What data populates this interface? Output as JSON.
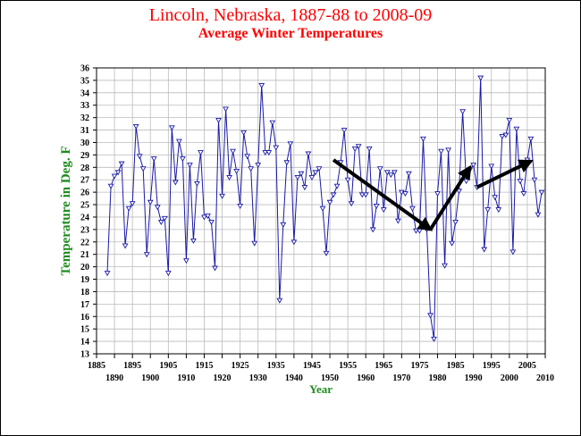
{
  "chart_data": {
    "type": "line",
    "title": "Lincoln, Nebraska, 1887-88 to 2008-09",
    "subtitle": "Average Winter Temperatures",
    "xlabel": "Year",
    "ylabel": "Temperature in Deg. F",
    "xlim": [
      1885,
      2010
    ],
    "ylim": [
      13,
      36
    ],
    "x_ticks_top_row": [
      1885,
      1895,
      1905,
      1915,
      1925,
      1935,
      1945,
      1955,
      1965,
      1975,
      1985,
      1995,
      2005
    ],
    "x_ticks_bottom_row": [
      1890,
      1900,
      1910,
      1920,
      1930,
      1940,
      1950,
      1960,
      1970,
      1980,
      1990,
      2000,
      2010
    ],
    "y_ticks": [
      13,
      14,
      15,
      16,
      17,
      18,
      19,
      20,
      21,
      22,
      23,
      24,
      25,
      26,
      27,
      28,
      29,
      30,
      31,
      32,
      33,
      34,
      35,
      36
    ],
    "grid": true,
    "colors": {
      "line": "#1a1aa8",
      "marker": "#1a1aa8",
      "title": "#ff0000",
      "axis_title": "#1e8c1e",
      "arrow": "#000000"
    },
    "marker": "triangle-down",
    "series": [
      {
        "x": [
          1888,
          1889,
          1890,
          1891,
          1892,
          1893,
          1894,
          1895,
          1896,
          1897,
          1898,
          1899,
          1900,
          1901,
          1902,
          1903,
          1904,
          1905,
          1906,
          1907,
          1908,
          1909,
          1910,
          1911,
          1912,
          1913,
          1914,
          1915,
          1916,
          1917,
          1918,
          1919,
          1920,
          1921,
          1922,
          1923,
          1924,
          1925,
          1926,
          1927,
          1928,
          1929,
          1930,
          1931,
          1932,
          1933,
          1934,
          1935,
          1936,
          1937,
          1938,
          1939,
          1940,
          1941,
          1942,
          1943,
          1944,
          1945,
          1946,
          1947,
          1948,
          1949,
          1950,
          1951,
          1952,
          1953,
          1954,
          1955,
          1956,
          1957,
          1958,
          1959,
          1960,
          1961,
          1962,
          1963,
          1964,
          1965,
          1966,
          1967,
          1968,
          1969,
          1970,
          1971,
          1972,
          1973,
          1974,
          1975,
          1976,
          1977,
          1978,
          1979,
          1980,
          1981,
          1982,
          1983,
          1984,
          1985,
          1986,
          1987,
          1988,
          1989,
          1990,
          1991,
          1992,
          1993,
          1994,
          1995,
          1996,
          1997,
          1998,
          1999,
          2000,
          2001,
          2002,
          2003,
          2004,
          2005,
          2006,
          2007,
          2008,
          2009
        ],
        "values": [
          19.5,
          26.5,
          27.3,
          27.6,
          28.3,
          21.7,
          24.7,
          25.1,
          31.3,
          28.9,
          27.9,
          21.0,
          25.2,
          28.7,
          24.8,
          23.6,
          23.9,
          19.5,
          31.2,
          26.8,
          30.1,
          28.7,
          20.5,
          28.2,
          22.1,
          26.7,
          29.2,
          24.0,
          24.1,
          23.6,
          19.9,
          31.8,
          25.7,
          32.7,
          27.2,
          29.3,
          27.7,
          24.9,
          30.8,
          28.9,
          27.9,
          21.9,
          28.2,
          34.6,
          29.2,
          29.2,
          31.6,
          29.6,
          17.3,
          23.4,
          28.4,
          29.9,
          22.0,
          27.2,
          27.5,
          26.4,
          29.1,
          27.2,
          27.6,
          27.9,
          24.7,
          21.1,
          25.2,
          25.8,
          26.5,
          28.4,
          31.0,
          27.0,
          25.1,
          29.5,
          29.7,
          25.8,
          25.8,
          29.5,
          23.0,
          24.9,
          27.9,
          24.6,
          27.6,
          27.4,
          27.6,
          23.7,
          26.0,
          25.9,
          27.5,
          24.7,
          22.9,
          22.9,
          30.3,
          23.0,
          16.1,
          14.2,
          25.9,
          29.3,
          20.1,
          29.4,
          21.9,
          23.6,
          26.1,
          32.5,
          26.9,
          27.8,
          28.2,
          26.4,
          35.2,
          21.4,
          24.6,
          28.1,
          25.6,
          24.6,
          30.5,
          30.6,
          31.8,
          21.2,
          31.1,
          26.9,
          25.9,
          28.6,
          30.3,
          27.0,
          24.2,
          26.0
        ]
      }
    ],
    "annotations": [
      {
        "type": "arrow",
        "from": [
          1951,
          28.6
        ],
        "to": [
          1978,
          23.0
        ]
      },
      {
        "type": "arrow",
        "from": [
          1978,
          23.0
        ],
        "to": [
          1989,
          28.0
        ]
      },
      {
        "type": "arrow",
        "from": [
          1991,
          26.4
        ],
        "to": [
          2006,
          28.5
        ]
      }
    ]
  }
}
